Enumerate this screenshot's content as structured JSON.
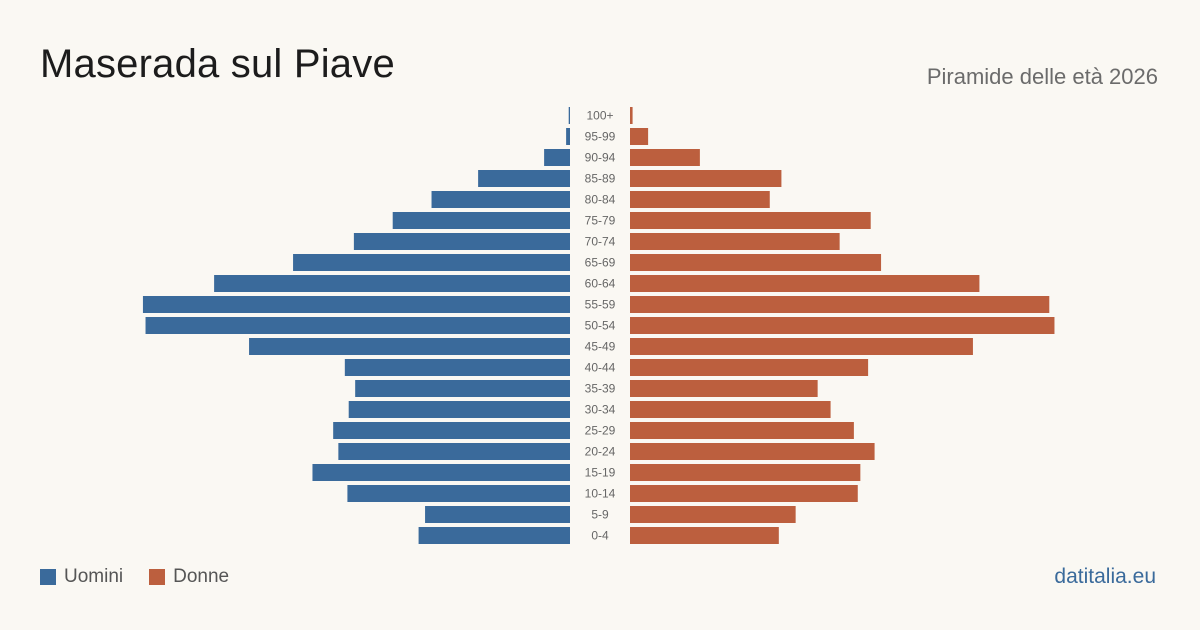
{
  "header": {
    "title": "Maserada sul Piave",
    "subtitle": "Piramide delle età 2026"
  },
  "legend": {
    "men_label": "Uomini",
    "women_label": "Donne"
  },
  "brand": "datitalia.eu",
  "colors": {
    "men": "#3a6a9b",
    "women": "#bc5f3e",
    "background": "#faf8f3"
  },
  "chart_data": {
    "type": "bar",
    "orientation": "horizontal",
    "layout": "population-pyramid",
    "categories": [
      "100+",
      "95-99",
      "90-94",
      "85-89",
      "80-84",
      "75-79",
      "70-74",
      "65-69",
      "60-64",
      "55-59",
      "50-54",
      "45-49",
      "40-44",
      "35-39",
      "30-34",
      "25-29",
      "20-24",
      "15-19",
      "10-14",
      "5-9",
      "0-4"
    ],
    "series": [
      {
        "name": "Uomini",
        "color": "#3a6a9b",
        "values": [
          1,
          3,
          20,
          71,
          107,
          137,
          167,
          214,
          275,
          330,
          328,
          248,
          174,
          166,
          171,
          183,
          179,
          199,
          172,
          112,
          117
        ]
      },
      {
        "name": "Donne",
        "color": "#bc5f3e",
        "values": [
          2,
          14,
          54,
          117,
          108,
          186,
          162,
          194,
          270,
          324,
          328,
          265,
          184,
          145,
          155,
          173,
          189,
          178,
          176,
          128,
          115
        ]
      }
    ],
    "xlim": [
      0,
      340
    ],
    "grid": false,
    "legend_position": "bottom-left"
  }
}
